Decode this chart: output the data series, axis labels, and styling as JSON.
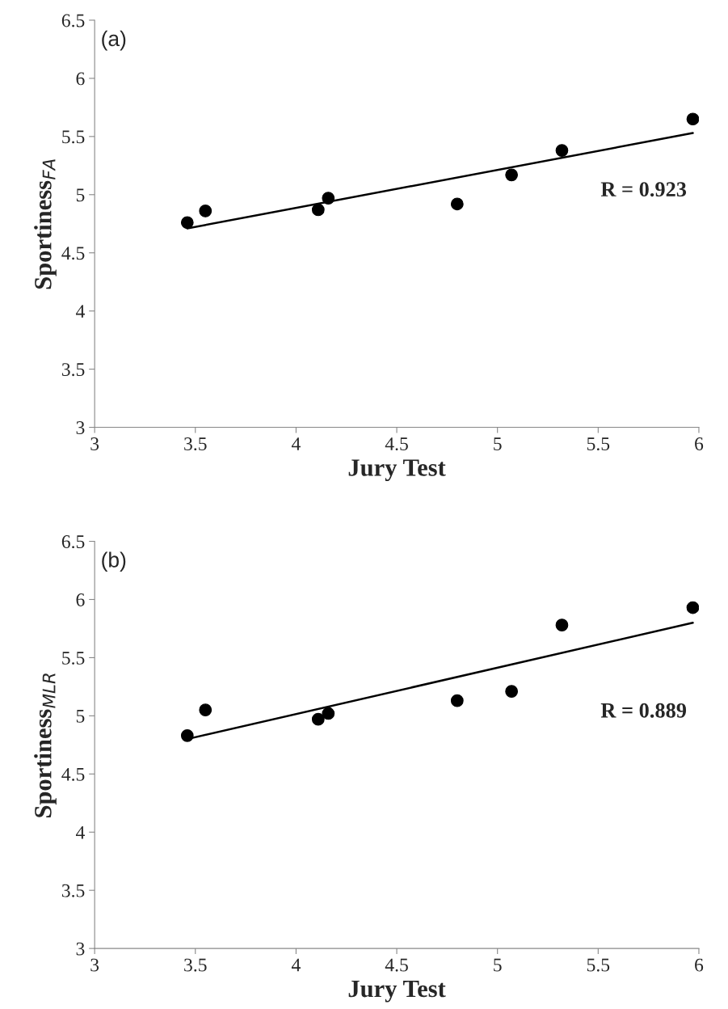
{
  "chart_data": [
    {
      "type": "scatter",
      "xlabel": "Jury Test",
      "ylabel": "Sportiness$_{FA}$",
      "annotations": [
        "(a)",
        "R = 0.923"
      ],
      "xlim": [
        3,
        6
      ],
      "xticks": [
        3,
        3.5,
        4,
        4.5,
        5,
        5.5,
        6
      ],
      "ylim": [
        3,
        6.5
      ],
      "yticks": [
        3,
        3.5,
        4,
        4.5,
        5,
        5.5,
        6,
        6.5
      ],
      "grid": false,
      "legend": false,
      "series": [
        {
          "marker": "circle",
          "color": "#000000",
          "x": [
            3.46,
            3.55,
            4.11,
            4.16,
            4.8,
            5.07,
            5.32,
            5.97
          ],
          "values": [
            4.76,
            4.86,
            4.87,
            4.97,
            4.92,
            5.17,
            5.38,
            5.65
          ]
        },
        {
          "type": "line",
          "color": "#000000",
          "x": [
            3.46,
            5.97
          ],
          "values": [
            4.71,
            5.53
          ]
        }
      ]
    },
    {
      "type": "scatter",
      "xlabel": "Jury Test",
      "ylabel": "Sportiness$_{MLR}$",
      "annotations": [
        "(b)",
        "R = 0.889"
      ],
      "xlim": [
        3,
        6
      ],
      "xticks": [
        3,
        3.5,
        4,
        4.5,
        5,
        5.5,
        6
      ],
      "ylim": [
        3,
        6.5
      ],
      "yticks": [
        3,
        3.5,
        4,
        4.5,
        5,
        5.5,
        6,
        6.5
      ],
      "grid": false,
      "legend": false,
      "series": [
        {
          "marker": "circle",
          "color": "#000000",
          "x": [
            3.46,
            3.55,
            4.11,
            4.16,
            4.8,
            5.07,
            5.32,
            5.97
          ],
          "values": [
            4.83,
            5.05,
            4.97,
            5.02,
            5.13,
            5.21,
            5.78,
            5.93
          ]
        },
        {
          "type": "line",
          "color": "#000000",
          "x": [
            3.46,
            5.97
          ],
          "values": [
            4.8,
            5.8
          ]
        }
      ]
    }
  ]
}
